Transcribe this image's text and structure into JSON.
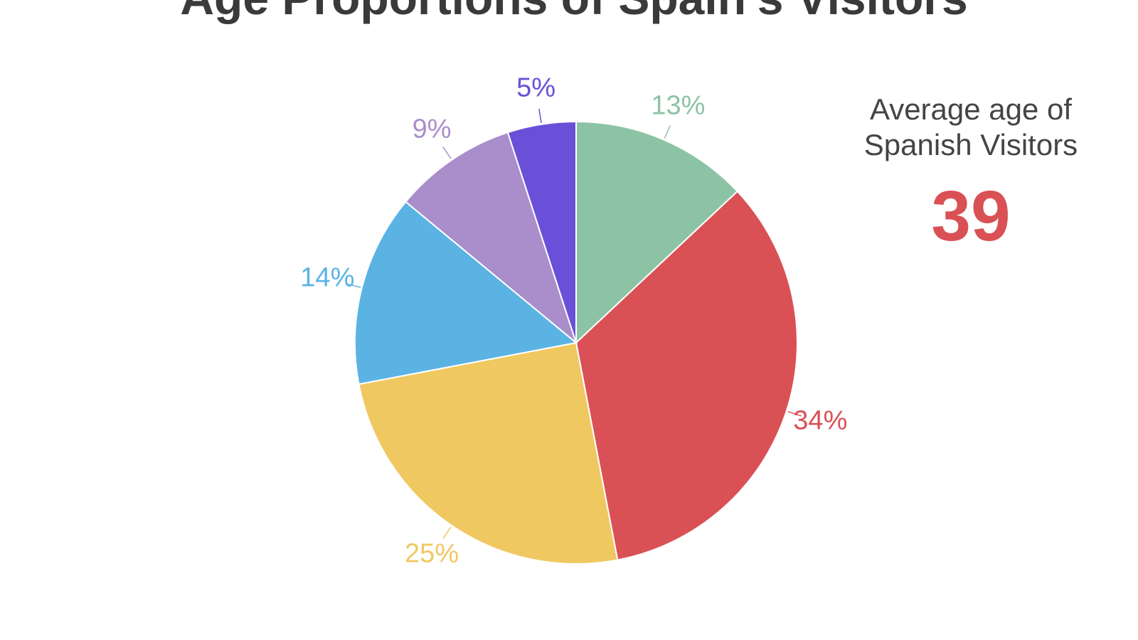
{
  "chart_data": {
    "type": "pie",
    "title": "Age Proportions of Spain's Visitors",
    "categories": [
      null,
      null,
      null,
      null,
      null,
      null
    ],
    "values": [
      13,
      34,
      25,
      14,
      9,
      5
    ],
    "value_labels": [
      "13%",
      "34%",
      "25%",
      "14%",
      "9%",
      "5%"
    ],
    "colors": [
      "#8cc3a4",
      "#d95155",
      "#f0c862",
      "#5bb3e3",
      "#a98ecb",
      "#6a50d8"
    ],
    "annotation": {
      "lines": [
        "Average age of",
        "Spanish Visitors"
      ],
      "value": 39,
      "value_color": "#d95155"
    }
  }
}
